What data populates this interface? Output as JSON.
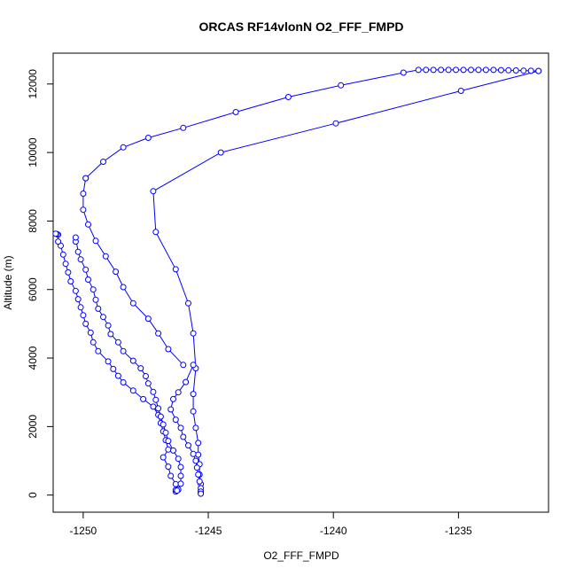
{
  "chart_data": {
    "type": "line",
    "title": "ORCAS RF14vlonN O2_FFF_FMPD",
    "xlabel": "O2_FFF_FMPD",
    "ylabel": "Altitude (m)",
    "xlim": [
      -1251.2,
      -1231.4
    ],
    "ylim": [
      -500,
      12900
    ],
    "x_ticks": [
      -1250,
      -1245,
      -1240,
      -1235
    ],
    "y_ticks": [
      0,
      2000,
      4000,
      6000,
      8000,
      10000,
      12000
    ],
    "grid": false,
    "legend": "none",
    "marker": "open-circle",
    "color": "#0000ff",
    "series": [
      {
        "values": [
          [
            -1231.8,
            12380
          ],
          [
            -1234.9,
            11800
          ],
          [
            -1239.9,
            10850
          ],
          [
            -1244.5,
            10000
          ],
          [
            -1247.2,
            8870
          ],
          [
            -1247.1,
            7680
          ],
          [
            -1246.3,
            6590
          ],
          [
            -1245.8,
            5600
          ],
          [
            -1245.6,
            4720
          ],
          [
            -1245.5,
            3700
          ],
          [
            -1245.6,
            2950
          ],
          [
            -1245.6,
            2440
          ],
          [
            -1245.5,
            1960
          ],
          [
            -1245.4,
            1520
          ],
          [
            -1245.4,
            1180
          ],
          [
            -1245.35,
            900
          ],
          [
            -1245.35,
            600
          ],
          [
            -1245.3,
            320
          ],
          [
            -1245.3,
            120
          ],
          [
            -1245.3,
            60
          ]
        ]
      },
      {
        "values": [
          [
            -1246.3,
            100
          ],
          [
            -1246.3,
            150
          ],
          [
            -1246.3,
            320
          ],
          [
            -1246.5,
            560
          ],
          [
            -1246.6,
            830
          ],
          [
            -1246.8,
            1100
          ],
          [
            -1246.6,
            1330
          ],
          [
            -1246.7,
            1600
          ],
          [
            -1246.8,
            1860
          ],
          [
            -1246.9,
            2100
          ],
          [
            -1247.0,
            2340
          ],
          [
            -1247.2,
            2580
          ],
          [
            -1247.6,
            2800
          ],
          [
            -1248.0,
            3050
          ],
          [
            -1248.4,
            3290
          ],
          [
            -1248.6,
            3480
          ],
          [
            -1248.8,
            3680
          ],
          [
            -1249.0,
            3900
          ],
          [
            -1249.4,
            4200
          ],
          [
            -1249.6,
            4460
          ],
          [
            -1249.7,
            4740
          ],
          [
            -1249.9,
            5000
          ],
          [
            -1250.0,
            5250
          ],
          [
            -1250.1,
            5480
          ],
          [
            -1250.2,
            5720
          ],
          [
            -1250.3,
            5960
          ],
          [
            -1250.5,
            6240
          ],
          [
            -1250.6,
            6500
          ],
          [
            -1250.7,
            6750
          ],
          [
            -1250.8,
            7020
          ],
          [
            -1250.9,
            7280
          ],
          [
            -1251.0,
            7400
          ],
          [
            -1251.0,
            7600
          ],
          [
            -1251.05,
            7620
          ],
          [
            -1251.1,
            7630
          ]
        ]
      },
      {
        "values": [
          [
            -1250.3,
            7400
          ],
          [
            -1250.3,
            7520
          ],
          [
            -1250.2,
            7100
          ],
          [
            -1250.1,
            6880
          ],
          [
            -1249.9,
            6580
          ],
          [
            -1249.8,
            6290
          ],
          [
            -1249.6,
            6000
          ],
          [
            -1249.5,
            5700
          ],
          [
            -1249.4,
            5440
          ],
          [
            -1249.2,
            5200
          ],
          [
            -1249.0,
            4950
          ],
          [
            -1248.9,
            4700
          ],
          [
            -1248.6,
            4460
          ],
          [
            -1248.4,
            4200
          ],
          [
            -1248.0,
            3920
          ],
          [
            -1247.7,
            3700
          ],
          [
            -1247.5,
            3470
          ],
          [
            -1247.4,
            3260
          ],
          [
            -1247.2,
            3010
          ],
          [
            -1247.1,
            2780
          ],
          [
            -1247.0,
            2530
          ],
          [
            -1246.9,
            2290
          ],
          [
            -1246.8,
            2060
          ],
          [
            -1246.7,
            1820
          ],
          [
            -1246.6,
            1580
          ],
          [
            -1246.4,
            1300
          ],
          [
            -1246.2,
            1060
          ],
          [
            -1246.1,
            820
          ],
          [
            -1246.1,
            560
          ],
          [
            -1246.1,
            330
          ],
          [
            -1246.2,
            160
          ],
          [
            -1246.25,
            130
          ]
        ]
      },
      {
        "values": [
          [
            -1245.6,
            3800
          ],
          [
            -1245.9,
            3300
          ],
          [
            -1246.2,
            3000
          ],
          [
            -1246.4,
            2800
          ],
          [
            -1246.5,
            2500
          ],
          [
            -1246.3,
            2200
          ],
          [
            -1246.1,
            1960
          ],
          [
            -1246.0,
            1700
          ],
          [
            -1245.8,
            1450
          ],
          [
            -1245.6,
            1200
          ],
          [
            -1245.5,
            1000
          ],
          [
            -1245.45,
            800
          ],
          [
            -1245.4,
            600
          ],
          [
            -1245.35,
            400
          ],
          [
            -1245.3,
            200
          ],
          [
            -1245.3,
            100
          ],
          [
            -1245.3,
            40
          ]
        ]
      },
      {
        "values": [
          [
            -1249.9,
            9250
          ],
          [
            -1249.2,
            9730
          ],
          [
            -1248.4,
            10150
          ],
          [
            -1247.4,
            10430
          ],
          [
            -1246.0,
            10720
          ],
          [
            -1243.9,
            11180
          ],
          [
            -1241.8,
            11620
          ],
          [
            -1239.7,
            11960
          ],
          [
            -1237.2,
            12330
          ],
          [
            -1236.6,
            12410
          ],
          [
            -1236.3,
            12410
          ],
          [
            -1236.0,
            12410
          ],
          [
            -1235.7,
            12410
          ],
          [
            -1235.4,
            12410
          ],
          [
            -1235.1,
            12410
          ],
          [
            -1234.8,
            12410
          ],
          [
            -1234.5,
            12410
          ],
          [
            -1234.2,
            12410
          ],
          [
            -1233.9,
            12410
          ],
          [
            -1233.6,
            12410
          ],
          [
            -1233.3,
            12405
          ],
          [
            -1233.0,
            12400
          ],
          [
            -1232.7,
            12395
          ],
          [
            -1232.4,
            12390
          ],
          [
            -1232.1,
            12385
          ],
          [
            -1231.8,
            12380
          ]
        ]
      },
      {
        "values": [
          [
            -1249.9,
            9250
          ],
          [
            -1250.0,
            8800
          ],
          [
            -1250.0,
            8330
          ],
          [
            -1249.8,
            7900
          ],
          [
            -1249.5,
            7420
          ],
          [
            -1249.1,
            6970
          ],
          [
            -1248.7,
            6520
          ],
          [
            -1248.4,
            6070
          ],
          [
            -1248.0,
            5600
          ],
          [
            -1247.4,
            5150
          ],
          [
            -1247.0,
            4720
          ],
          [
            -1246.6,
            4260
          ],
          [
            -1246.0,
            3800
          ]
        ]
      }
    ]
  }
}
